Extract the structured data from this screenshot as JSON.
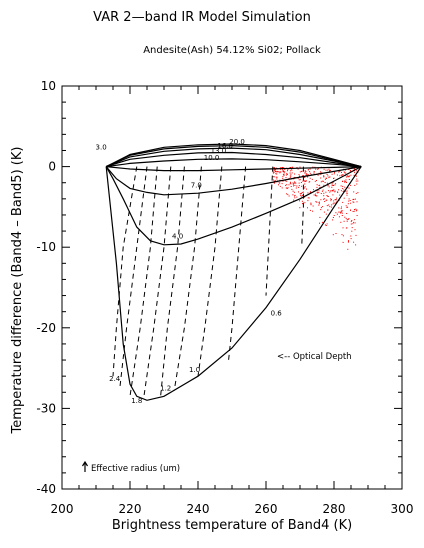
{
  "chart_data": {
    "type": "line",
    "title": "VAR 2—band IR Model Simulation",
    "subtitle": "Andesite(Ash) 54.12% Si02; Pollack",
    "xlabel": "Brightness temperature of Band4 (K)",
    "ylabel": "Temperature difference (Band4 – Band5) (K)",
    "xlim": [
      200,
      300
    ],
    "ylim": [
      -40,
      10
    ],
    "xticks": [
      200,
      220,
      240,
      260,
      280,
      300
    ],
    "yticks": [
      10,
      0,
      -10,
      -20,
      -30,
      -40
    ],
    "grid": false,
    "legend": "none",
    "colors": {
      "lines": "#000000",
      "observations": "#ff0000"
    },
    "annotations": {
      "optical_depth": "<-- Optical Depth",
      "effective_radius": "Effective radius (um)"
    },
    "radius_labels": [
      {
        "text": "3.0",
        "x": 211.5,
        "y": 2.1
      },
      {
        "text": "4.0",
        "x": 234,
        "y": -8.9
      },
      {
        "text": "7.0",
        "x": 239.5,
        "y": -2.6
      },
      {
        "text": "10.0",
        "x": 244,
        "y": 0.8
      },
      {
        "text": "13.0",
        "x": 246,
        "y": 1.7
      },
      {
        "text": "16.0",
        "x": 248,
        "y": 2.3
      },
      {
        "text": "20.0",
        "x": 251.5,
        "y": 2.8
      }
    ],
    "tau_labels": [
      {
        "text": "2.4",
        "x": 215.5,
        "y": -26.6
      },
      {
        "text": "1.8",
        "x": 222,
        "y": -29.3
      },
      {
        "text": "1.2",
        "x": 230.5,
        "y": -27.8
      },
      {
        "text": "1.0",
        "x": 239,
        "y": -25.5
      },
      {
        "text": "0.6",
        "x": 263,
        "y": -18.5
      }
    ],
    "series": [
      {
        "x": [
          213,
          216,
          218,
          220,
          222,
          225,
          230,
          240,
          250,
          260,
          270,
          280,
          288
        ],
        "y": [
          0,
          -12,
          -22,
          -27,
          -28.5,
          -29,
          -28.5,
          -26,
          -22.5,
          -17.5,
          -11.5,
          -5,
          0
        ]
      },
      {
        "x": [
          213,
          215,
          218,
          222,
          226,
          230,
          235,
          240,
          250,
          260,
          270,
          280,
          288
        ],
        "y": [
          0,
          -1.5,
          -4,
          -7.5,
          -9.2,
          -9.7,
          -9.6,
          -9,
          -7.5,
          -5.8,
          -4,
          -1.8,
          0
        ]
      },
      {
        "x": [
          213,
          216,
          220,
          225,
          230,
          240,
          250,
          260,
          270,
          280,
          288
        ],
        "y": [
          0,
          -1.5,
          -2.7,
          -3.2,
          -3.5,
          -3.3,
          -2.8,
          -2.1,
          -1.3,
          -0.6,
          0
        ]
      },
      {
        "x": [
          213,
          220,
          230,
          240,
          250,
          260,
          270,
          280,
          288
        ],
        "y": [
          0,
          -0.3,
          -0.5,
          -0.5,
          -0.4,
          -0.3,
          -0.2,
          -0.1,
          0
        ]
      },
      {
        "x": [
          213,
          220,
          230,
          240,
          250,
          260,
          270,
          280,
          288
        ],
        "y": [
          0,
          0.4,
          0.7,
          0.9,
          0.95,
          0.85,
          0.6,
          0.3,
          0
        ]
      },
      {
        "x": [
          213,
          220,
          230,
          240,
          250,
          260,
          270,
          280,
          288
        ],
        "y": [
          0,
          0.9,
          1.4,
          1.7,
          1.75,
          1.5,
          1.1,
          0.5,
          0
        ]
      },
      {
        "x": [
          213,
          220,
          230,
          240,
          250,
          260,
          270,
          280,
          288
        ],
        "y": [
          0,
          1.2,
          1.9,
          2.2,
          2.3,
          2.1,
          1.5,
          0.7,
          0
        ]
      },
      {
        "x": [
          213,
          220,
          230,
          240,
          250,
          260,
          270,
          280,
          288
        ],
        "y": [
          0,
          1.4,
          2.2,
          2.5,
          2.6,
          2.4,
          1.8,
          0.8,
          0
        ]
      },
      {
        "x": [
          213,
          220,
          230,
          240,
          250,
          260,
          270,
          280,
          288
        ],
        "y": [
          0,
          1.5,
          2.4,
          2.7,
          2.8,
          2.6,
          2.0,
          0.9,
          0
        ]
      }
    ],
    "dashed_series": [
      {
        "x": [
          222,
          218,
          216,
          215
        ],
        "y": [
          0,
          -10,
          -20,
          -26
        ]
      },
      {
        "x": [
          225,
          222,
          219,
          217
        ],
        "y": [
          0,
          -10,
          -20,
          -27.5
        ]
      },
      {
        "x": [
          228,
          226,
          223,
          220
        ],
        "y": [
          0,
          -10,
          -20,
          -28.5
        ]
      },
      {
        "x": [
          232,
          230,
          227,
          224
        ],
        "y": [
          0,
          -10,
          -20,
          -28.8
        ]
      },
      {
        "x": [
          236,
          234,
          231,
          229
        ],
        "y": [
          0,
          -10,
          -20,
          -28.5
        ]
      },
      {
        "x": [
          241,
          239,
          236,
          233
        ],
        "y": [
          0,
          -10,
          -20,
          -27.8
        ]
      },
      {
        "x": [
          247,
          245,
          242,
          240
        ],
        "y": [
          0,
          -10,
          -20,
          -26
        ]
      },
      {
        "x": [
          254,
          252,
          250,
          249
        ],
        "y": [
          0,
          -10,
          -20,
          -24
        ]
      },
      {
        "x": [
          262,
          261,
          260
        ],
        "y": [
          0,
          -8,
          -16
        ]
      },
      {
        "x": [
          271,
          271,
          270.5
        ],
        "y": [
          0,
          -5,
          -10
        ]
      }
    ],
    "observations_region": {
      "x": [
        262,
        287
      ],
      "y": [
        -13,
        0
      ]
    }
  }
}
